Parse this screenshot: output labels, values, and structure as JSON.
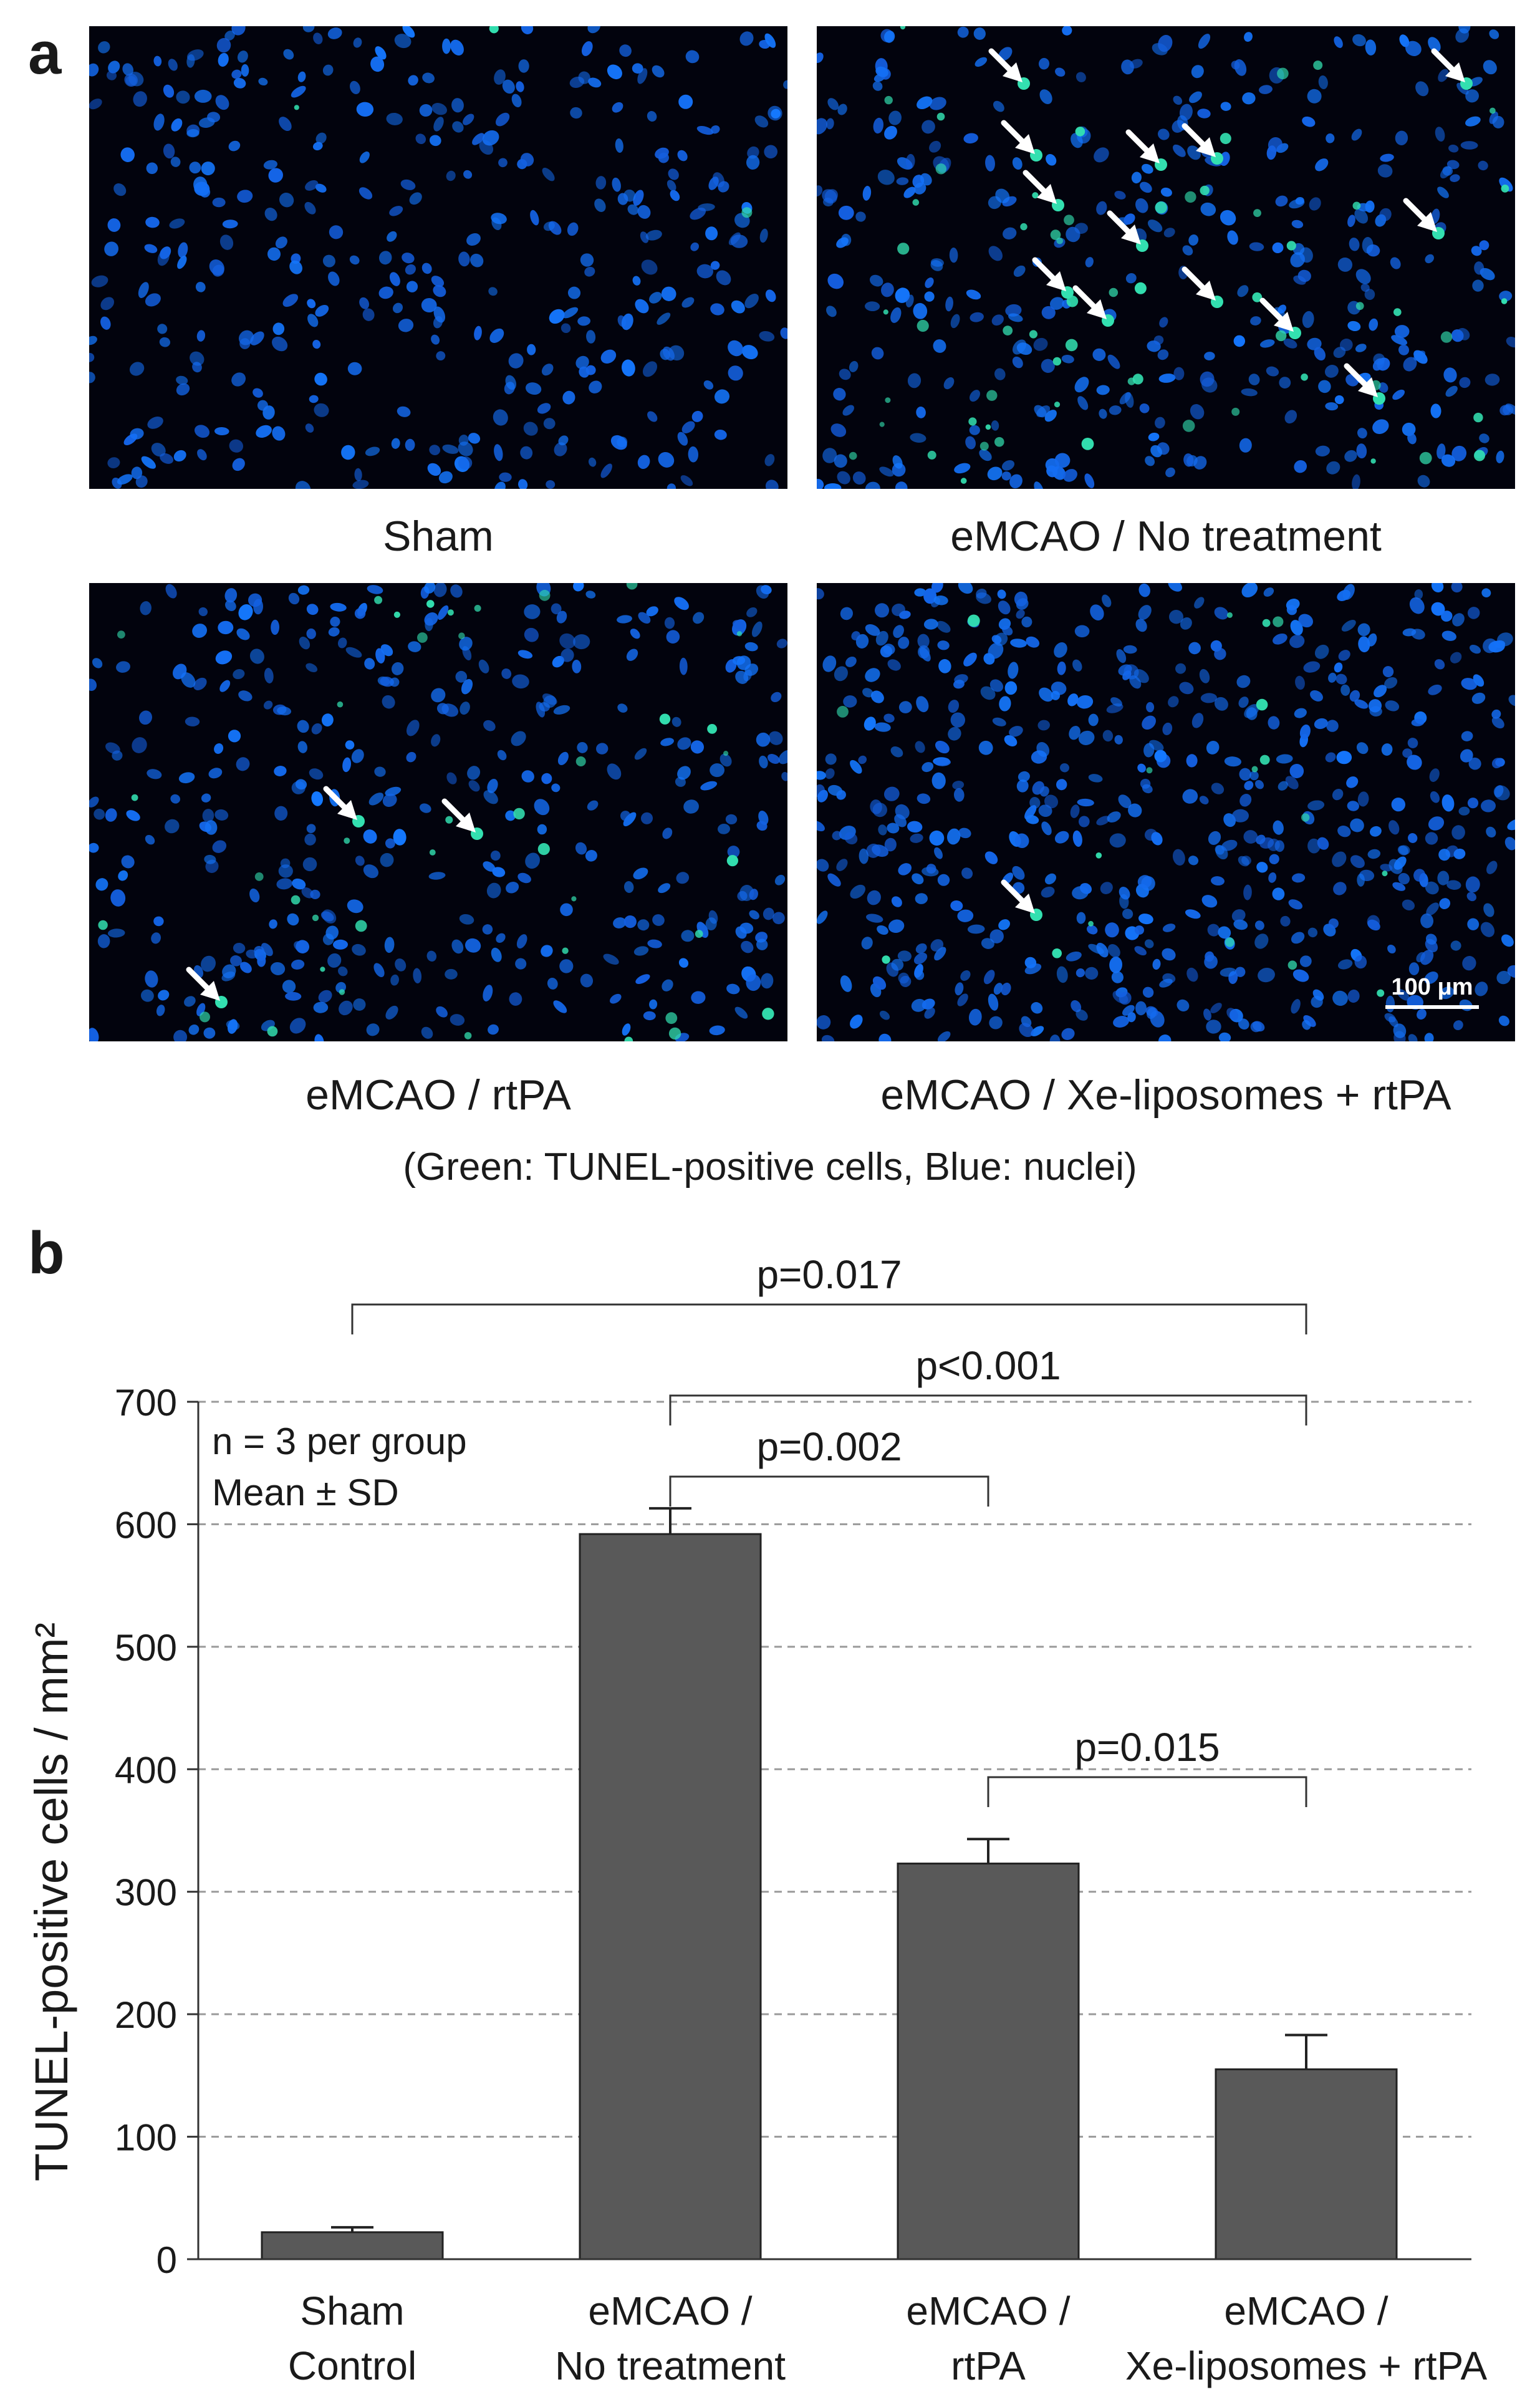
{
  "panel_a": {
    "letter": "a",
    "images": [
      {
        "caption": "Sham",
        "arrows": 0
      },
      {
        "caption": "eMCAO / No treatment",
        "arrows": 13
      },
      {
        "caption": "eMCAO / rtPA",
        "arrows": 3
      },
      {
        "caption": "eMCAO / Xe-liposomes + rtPA",
        "arrows": 1,
        "scale_bar": "100 μm"
      }
    ],
    "legend_note": "(Green: TUNEL-positive cells, Blue: nuclei)",
    "colors": {
      "nuclei": "#1f5fe0",
      "tunel": "#33e0b0",
      "background": "#02030d"
    }
  },
  "panel_b": {
    "letter": "b"
  },
  "chart_data": {
    "type": "bar",
    "categories": [
      [
        "Sham",
        "Control"
      ],
      [
        "eMCAO /",
        "No treatment"
      ],
      [
        "eMCAO /",
        "rtPA"
      ],
      [
        "eMCAO /",
        "Xe-liposomes + rtPA"
      ]
    ],
    "values": [
      22,
      592,
      323,
      155
    ],
    "errors": [
      4,
      21,
      20,
      28
    ],
    "ylabel": "TUNEL-positive cells / mm²",
    "ylim": [
      0,
      700
    ],
    "yticks": [
      0,
      100,
      200,
      300,
      400,
      500,
      600,
      700
    ],
    "grid": "horizontal dashed",
    "bar_color": "#595959",
    "annotations": [
      "n = 3 per group",
      "Mean ± SD"
    ],
    "comparisons": [
      {
        "from": 0,
        "to": 3,
        "label": "p=0.017"
      },
      {
        "from": 1,
        "to": 3,
        "label": "p<0.001"
      },
      {
        "from": 1,
        "to": 2,
        "label": "p=0.002"
      },
      {
        "from": 2,
        "to": 3,
        "label": "p=0.015"
      }
    ]
  }
}
